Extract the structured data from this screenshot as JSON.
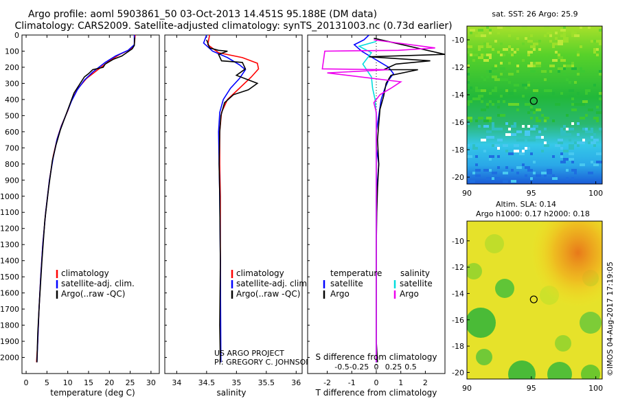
{
  "header": {
    "title": "Argo profile: aoml 5903861_50 03-Oct-2013 14.451S 95.188E (DM data)",
    "subtitle": "Climatology: CARS2009. Satellite-adjusted climatology: synTS_20131003.nc (0.73d earlier)"
  },
  "colors": {
    "clim": "#ff0000",
    "sat": "#0000ff",
    "argo": "#000000",
    "sal_sat": "#00dddd",
    "sal_argo": "#ee00ee"
  },
  "chart_data": [
    {
      "id": "temp",
      "type": "line",
      "xlabel": "temperature (deg C)",
      "ylabel": "",
      "xlim": [
        -1,
        32
      ],
      "ylim": [
        0,
        2100
      ],
      "xticks": [
        0,
        5,
        10,
        15,
        20,
        25,
        30
      ],
      "xtick_labels": [
        "0",
        "5",
        "10",
        "15",
        "20",
        "25",
        "30"
      ],
      "yticks": [
        0,
        100,
        200,
        300,
        400,
        500,
        600,
        700,
        800,
        900,
        1000,
        1100,
        1200,
        1300,
        1400,
        1500,
        1600,
        1700,
        1800,
        1900,
        2000
      ],
      "ytick_labels": [
        "0",
        "100",
        "200",
        "300",
        "400",
        "500",
        "600",
        "700",
        "800",
        "900",
        "1000",
        "1100",
        "1200",
        "1300",
        "1400",
        "1500",
        "1600",
        "1700",
        "1800",
        "1900",
        "2000"
      ],
      "legend": [
        "climatology",
        "satellite-adj. clim.",
        "Argo(..raw -QC)"
      ],
      "series": [
        {
          "name": "climatology",
          "color": "red",
          "points": [
            [
              26.2,
              0
            ],
            [
              26,
              60
            ],
            [
              25,
              90
            ],
            [
              22.5,
              120
            ],
            [
              20,
              160
            ],
            [
              17,
              220
            ],
            [
              14.5,
              270
            ],
            [
              12.5,
              330
            ],
            [
              11,
              400
            ],
            [
              10,
              470
            ],
            [
              8.5,
              560
            ],
            [
              7.5,
              640
            ],
            [
              6.5,
              750
            ],
            [
              5.6,
              900
            ],
            [
              4.7,
              1100
            ],
            [
              4,
              1300
            ],
            [
              3.5,
              1500
            ],
            [
              3.1,
              1700
            ],
            [
              2.8,
              1900
            ],
            [
              2.5,
              2030
            ]
          ]
        },
        {
          "name": "satellite-adj. clim.",
          "color": "blue",
          "points": [
            [
              26,
              0
            ],
            [
              26,
              60
            ],
            [
              24.5,
              95
            ],
            [
              21.5,
              130
            ],
            [
              19,
              170
            ],
            [
              16,
              230
            ],
            [
              14,
              280
            ],
            [
              12.3,
              340
            ],
            [
              10.9,
              410
            ],
            [
              9.8,
              480
            ],
            [
              8.4,
              570
            ],
            [
              7.4,
              650
            ],
            [
              6.5,
              760
            ],
            [
              5.6,
              900
            ],
            [
              4.7,
              1100
            ],
            [
              4,
              1300
            ],
            [
              3.5,
              1500
            ],
            [
              3.1,
              1700
            ],
            [
              2.8,
              1900
            ],
            [
              2.6,
              2030
            ]
          ]
        },
        {
          "name": "Argo(..raw -QC)",
          "color": "black",
          "points": [
            [
              26.1,
              15
            ],
            [
              26,
              65
            ],
            [
              25.5,
              85
            ],
            [
              23,
              130
            ],
            [
              21,
              150
            ],
            [
              19,
              180
            ],
            [
              18.5,
              200
            ],
            [
              16,
              215
            ],
            [
              15,
              240
            ],
            [
              14,
              260
            ],
            [
              13,
              300
            ],
            [
              11.5,
              360
            ],
            [
              10.5,
              430
            ],
            [
              9.5,
              500
            ],
            [
              8.2,
              590
            ],
            [
              7.2,
              680
            ],
            [
              6.3,
              780
            ],
            [
              5.4,
              950
            ],
            [
              4.5,
              1150
            ],
            [
              3.8,
              1400
            ],
            [
              3.2,
              1650
            ],
            [
              2.8,
              1850
            ],
            [
              2.6,
              2030
            ]
          ]
        }
      ]
    },
    {
      "id": "sal",
      "type": "line",
      "xlabel": "salinity",
      "ylabel": "",
      "xlim": [
        33.8,
        36.1
      ],
      "ylim": [
        0,
        2100
      ],
      "xticks": [
        34,
        34.5,
        35,
        35.5,
        36
      ],
      "xtick_labels": [
        "34",
        "34.5",
        "35",
        "35.5",
        "36"
      ],
      "legend": [
        "climatology",
        "satellite-adj. clim.",
        "Argo(..raw -QC)"
      ],
      "series": [
        {
          "name": "climatology",
          "color": "red",
          "points": [
            [
              34.55,
              0
            ],
            [
              34.52,
              60
            ],
            [
              34.7,
              110
            ],
            [
              35.1,
              140
            ],
            [
              35.35,
              175
            ],
            [
              35.37,
              210
            ],
            [
              35.25,
              260
            ],
            [
              35.05,
              330
            ],
            [
              34.85,
              400
            ],
            [
              34.75,
              480
            ],
            [
              34.72,
              600
            ],
            [
              34.72,
              800
            ],
            [
              34.73,
              1000
            ],
            [
              34.73,
              1400
            ],
            [
              34.73,
              2030
            ]
          ]
        },
        {
          "name": "satellite-adj. clim.",
          "color": "blue",
          "points": [
            [
              34.5,
              0
            ],
            [
              34.45,
              50
            ],
            [
              34.6,
              100
            ],
            [
              34.85,
              140
            ],
            [
              35.05,
              185
            ],
            [
              35.15,
              215
            ],
            [
              35.05,
              270
            ],
            [
              34.9,
              330
            ],
            [
              34.78,
              400
            ],
            [
              34.72,
              480
            ],
            [
              34.7,
              600
            ],
            [
              34.71,
              800
            ],
            [
              34.72,
              1000
            ],
            [
              34.73,
              1400
            ],
            [
              34.74,
              2030
            ]
          ]
        },
        {
          "name": "Argo(..raw -QC)",
          "color": "black",
          "points": [
            [
              34.5,
              30
            ],
            [
              34.55,
              80
            ],
            [
              34.7,
              95
            ],
            [
              34.85,
              100
            ],
            [
              34.7,
              120
            ],
            [
              34.75,
              160
            ],
            [
              35.1,
              170
            ],
            [
              35.15,
              210
            ],
            [
              35.0,
              250
            ],
            [
              35.35,
              300
            ],
            [
              35.2,
              340
            ],
            [
              34.95,
              370
            ],
            [
              34.8,
              420
            ],
            [
              34.74,
              500
            ],
            [
              34.72,
              600
            ],
            [
              34.71,
              800
            ],
            [
              34.72,
              1000
            ],
            [
              34.73,
              1400
            ],
            [
              34.72,
              1800
            ],
            [
              34.73,
              2030
            ]
          ]
        }
      ],
      "credit": [
        "US ARGO PROJECT",
        "PI: GREGORY C. JOHNSON"
      ]
    },
    {
      "id": "diff",
      "type": "line",
      "xlabel": "T difference from climatology",
      "xlabel_top": "S difference from climatology",
      "xlim": [
        -2.8,
        2.8
      ],
      "ylim": [
        0,
        2100
      ],
      "xticks": [
        -2,
        -1,
        0,
        1,
        2
      ],
      "xtick_labels": [
        "-2",
        "-1",
        "0",
        "1",
        "2"
      ],
      "top_ticks": [
        -0.5,
        -0.25,
        0,
        0.25,
        0.5
      ],
      "top_tick_labels": [
        "-0.5",
        "-0.25",
        "0",
        "0.25",
        "0.5"
      ],
      "legend_temperature": "temperature",
      "legend_salinity": "salinity",
      "legend_items": [
        "satellite",
        "Argo"
      ],
      "series": [
        {
          "name": "temperature satellite",
          "color": "blue",
          "points": [
            [
              -0.3,
              0
            ],
            [
              -0.5,
              30
            ],
            [
              -0.9,
              60
            ],
            [
              -0.6,
              100
            ],
            [
              0.5,
              200
            ],
            [
              0.7,
              240
            ],
            [
              0.5,
              280
            ],
            [
              0.35,
              330
            ],
            [
              0.2,
              400
            ],
            [
              0.1,
              500
            ],
            [
              0,
              600
            ],
            [
              0,
              700
            ],
            [
              0.1,
              800
            ],
            [
              0.05,
              900
            ],
            [
              0,
              1000
            ],
            [
              0,
              1100
            ],
            [
              0,
              1200
            ],
            [
              0,
              1400
            ],
            [
              0,
              1600
            ],
            [
              0,
              1800
            ],
            [
              0,
              2030
            ]
          ]
        },
        {
          "name": "temperature Argo",
          "color": "black",
          "points": [
            [
              -0.1,
              20
            ],
            [
              2.8,
              120
            ],
            [
              -0.3,
              135
            ],
            [
              2.2,
              160
            ],
            [
              0.8,
              180
            ],
            [
              0.3,
              215
            ],
            [
              1.7,
              215
            ],
            [
              0.6,
              250
            ],
            [
              0.4,
              300
            ],
            [
              0.3,
              380
            ],
            [
              0.15,
              460
            ],
            [
              0.1,
              550
            ],
            [
              0.05,
              650
            ],
            [
              0.1,
              800
            ],
            [
              0.05,
              950
            ],
            [
              0.02,
              1100
            ],
            [
              0,
              1300
            ],
            [
              0,
              1500
            ],
            [
              0,
              1700
            ],
            [
              0,
              1900
            ],
            [
              0.05,
              2030
            ]
          ]
        },
        {
          "name": "salinity satellite",
          "color": "cyan",
          "points": [
            [
              0,
              40
            ],
            [
              -0.7,
              70
            ],
            [
              -0.2,
              110
            ],
            [
              -0.55,
              180
            ],
            [
              -0.2,
              260
            ],
            [
              -0.15,
              330
            ],
            [
              -0.05,
              400
            ],
            [
              0,
              500
            ],
            [
              0,
              600
            ],
            [
              0,
              700
            ],
            [
              0,
              800
            ],
            [
              0,
              1000
            ],
            [
              0,
              1200
            ],
            [
              0,
              1400
            ],
            [
              0,
              1600
            ],
            [
              0,
              1800
            ],
            [
              0,
              2030
            ]
          ]
        },
        {
          "name": "salinity Argo",
          "color": "magenta",
          "points": [
            [
              -0.1,
              30
            ],
            [
              2.4,
              80
            ],
            [
              0.9,
              95
            ],
            [
              -2.1,
              100
            ],
            [
              -2.2,
              210
            ],
            [
              0.5,
              215
            ],
            [
              -2.0,
              235
            ],
            [
              1.0,
              290
            ],
            [
              0.6,
              330
            ],
            [
              0.15,
              370
            ],
            [
              -0.1,
              420
            ],
            [
              0,
              480
            ],
            [
              0,
              550
            ],
            [
              0,
              650
            ],
            [
              0,
              800
            ],
            [
              0,
              1000
            ],
            [
              0,
              1200
            ],
            [
              0,
              1400
            ],
            [
              0,
              1600
            ],
            [
              0,
              1800
            ],
            [
              0,
              2030
            ]
          ]
        }
      ]
    }
  ],
  "maps": {
    "sst": {
      "title": "sat. SST: 26 Argo: 25.9",
      "xticks": [
        90,
        95,
        100
      ],
      "xtick_labels": [
        "90",
        "95",
        "100"
      ],
      "yticks": [
        -10,
        -12,
        -14,
        -16,
        -18,
        -20
      ],
      "ytick_labels": [
        "-10",
        "-12",
        "-14",
        "-16",
        "-18",
        "-20"
      ],
      "xlim": [
        90,
        100.5
      ],
      "ylim": [
        -20.5,
        -9
      ]
    },
    "sla": {
      "title": "Altim. SLA: 0.14",
      "subtitle": "Argo h1000: 0.17 h2000: 0.18",
      "xticks": [
        90,
        95,
        100
      ],
      "xtick_labels": [
        "90",
        "95",
        "100"
      ],
      "yticks": [
        -10,
        -12,
        -14,
        -16,
        -18,
        -20
      ],
      "ytick_labels": [
        "-10",
        "-12",
        "-14",
        "-16",
        "-18",
        "-20"
      ],
      "xlim": [
        90,
        100.5
      ],
      "ylim": [
        -20.5,
        -8.5
      ]
    },
    "float_position": {
      "lon": 95.188,
      "lat": -14.451
    }
  },
  "watermark": "©IMOS 04-Aug-2017 17:19:05"
}
